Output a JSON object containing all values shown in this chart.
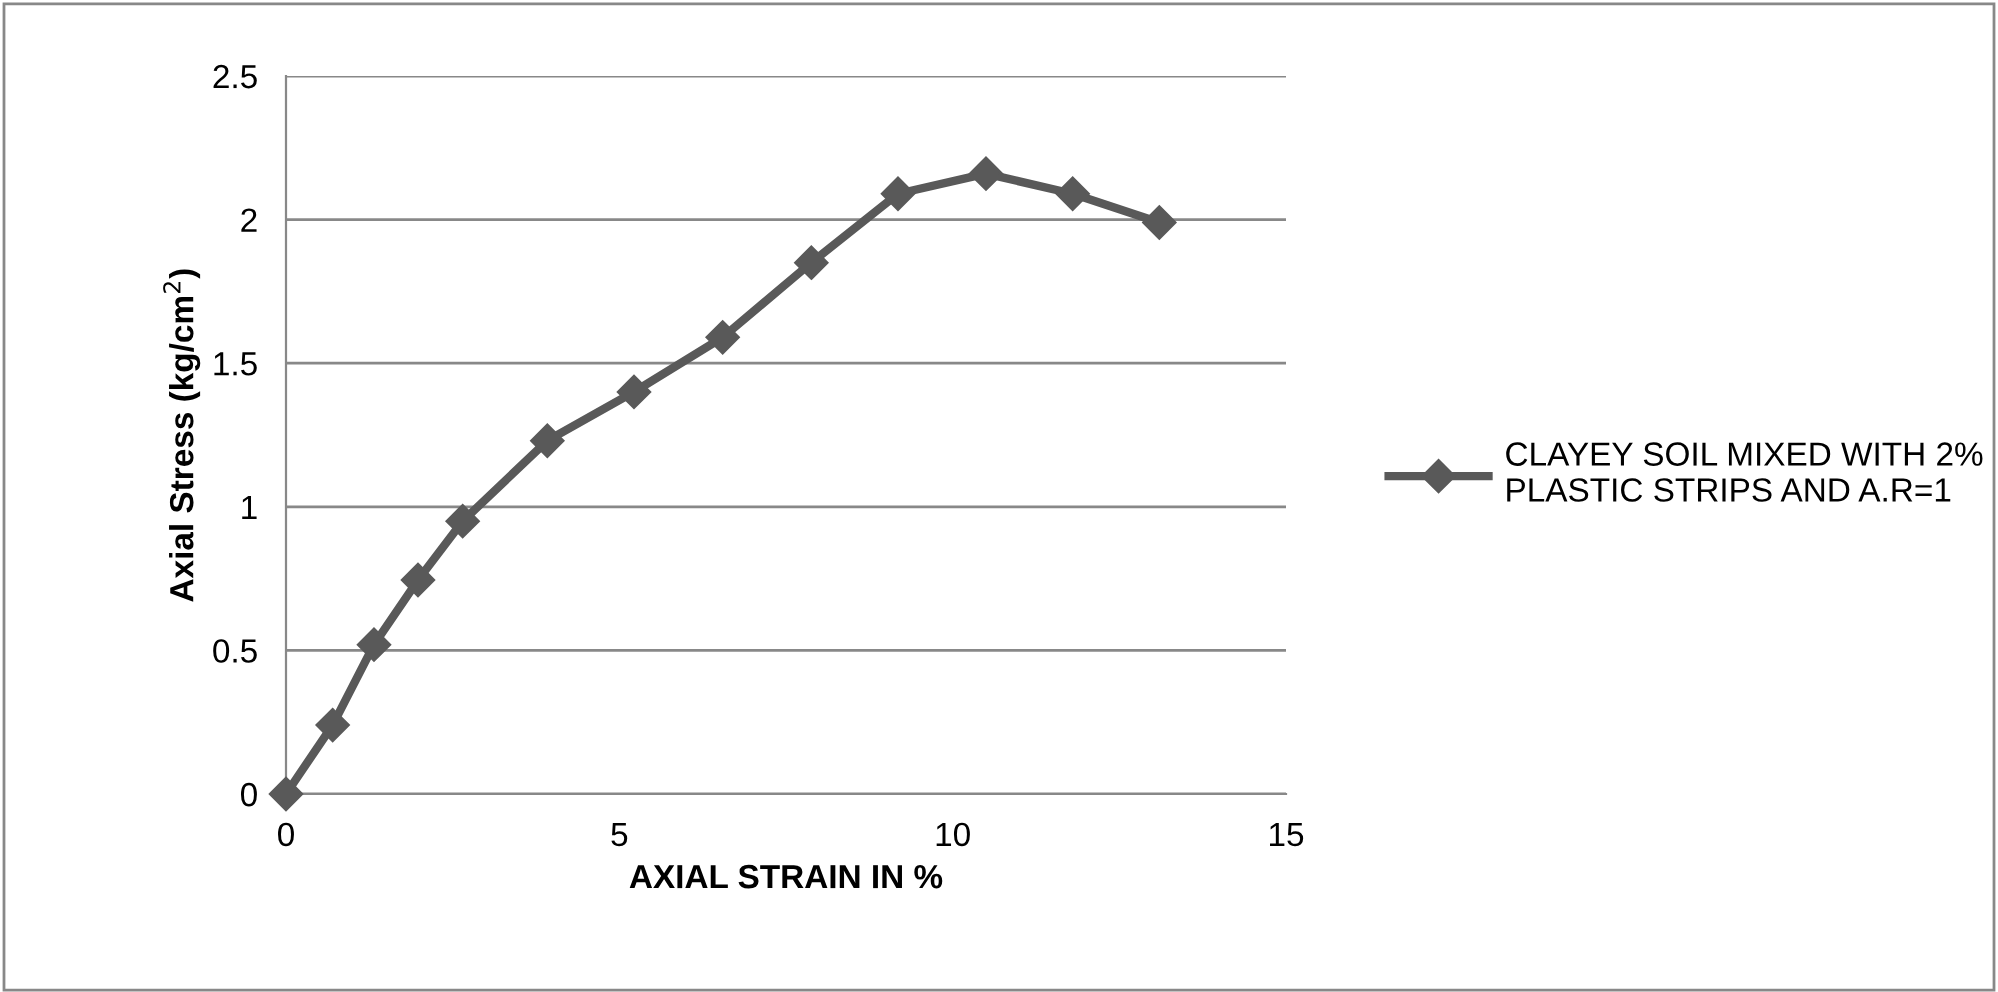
{
  "chart_data": {
    "type": "line",
    "xlabel": "AXIAL STRAIN IN %",
    "ylabel": "Axial Stress (kg/cm$^{2}$)",
    "x": [
      0,
      0.7,
      1.32,
      1.98,
      2.65,
      3.92,
      5.22,
      6.55,
      7.88,
      9.18,
      10.5,
      11.8,
      13.1
    ],
    "series": [
      {
        "name": "CLAYEY SOIL MIXED WITH 2% PLASTIC STRIPS AND A.R=1",
        "color": "#595959",
        "values": [
          0,
          0.24,
          0.52,
          0.745,
          0.95,
          1.23,
          1.4,
          1.59,
          1.85,
          2.09,
          2.16,
          2.09,
          1.99
        ]
      }
    ],
    "xlim": [
      0,
      15
    ],
    "xticks": [
      0,
      5,
      10,
      15
    ],
    "ylim": [
      0,
      2.5
    ],
    "yticks": [
      0,
      0.5,
      1,
      1.5,
      2,
      2.5
    ],
    "grid": "y",
    "legend": "right",
    "marker": "diamond",
    "line_style": "solid"
  }
}
